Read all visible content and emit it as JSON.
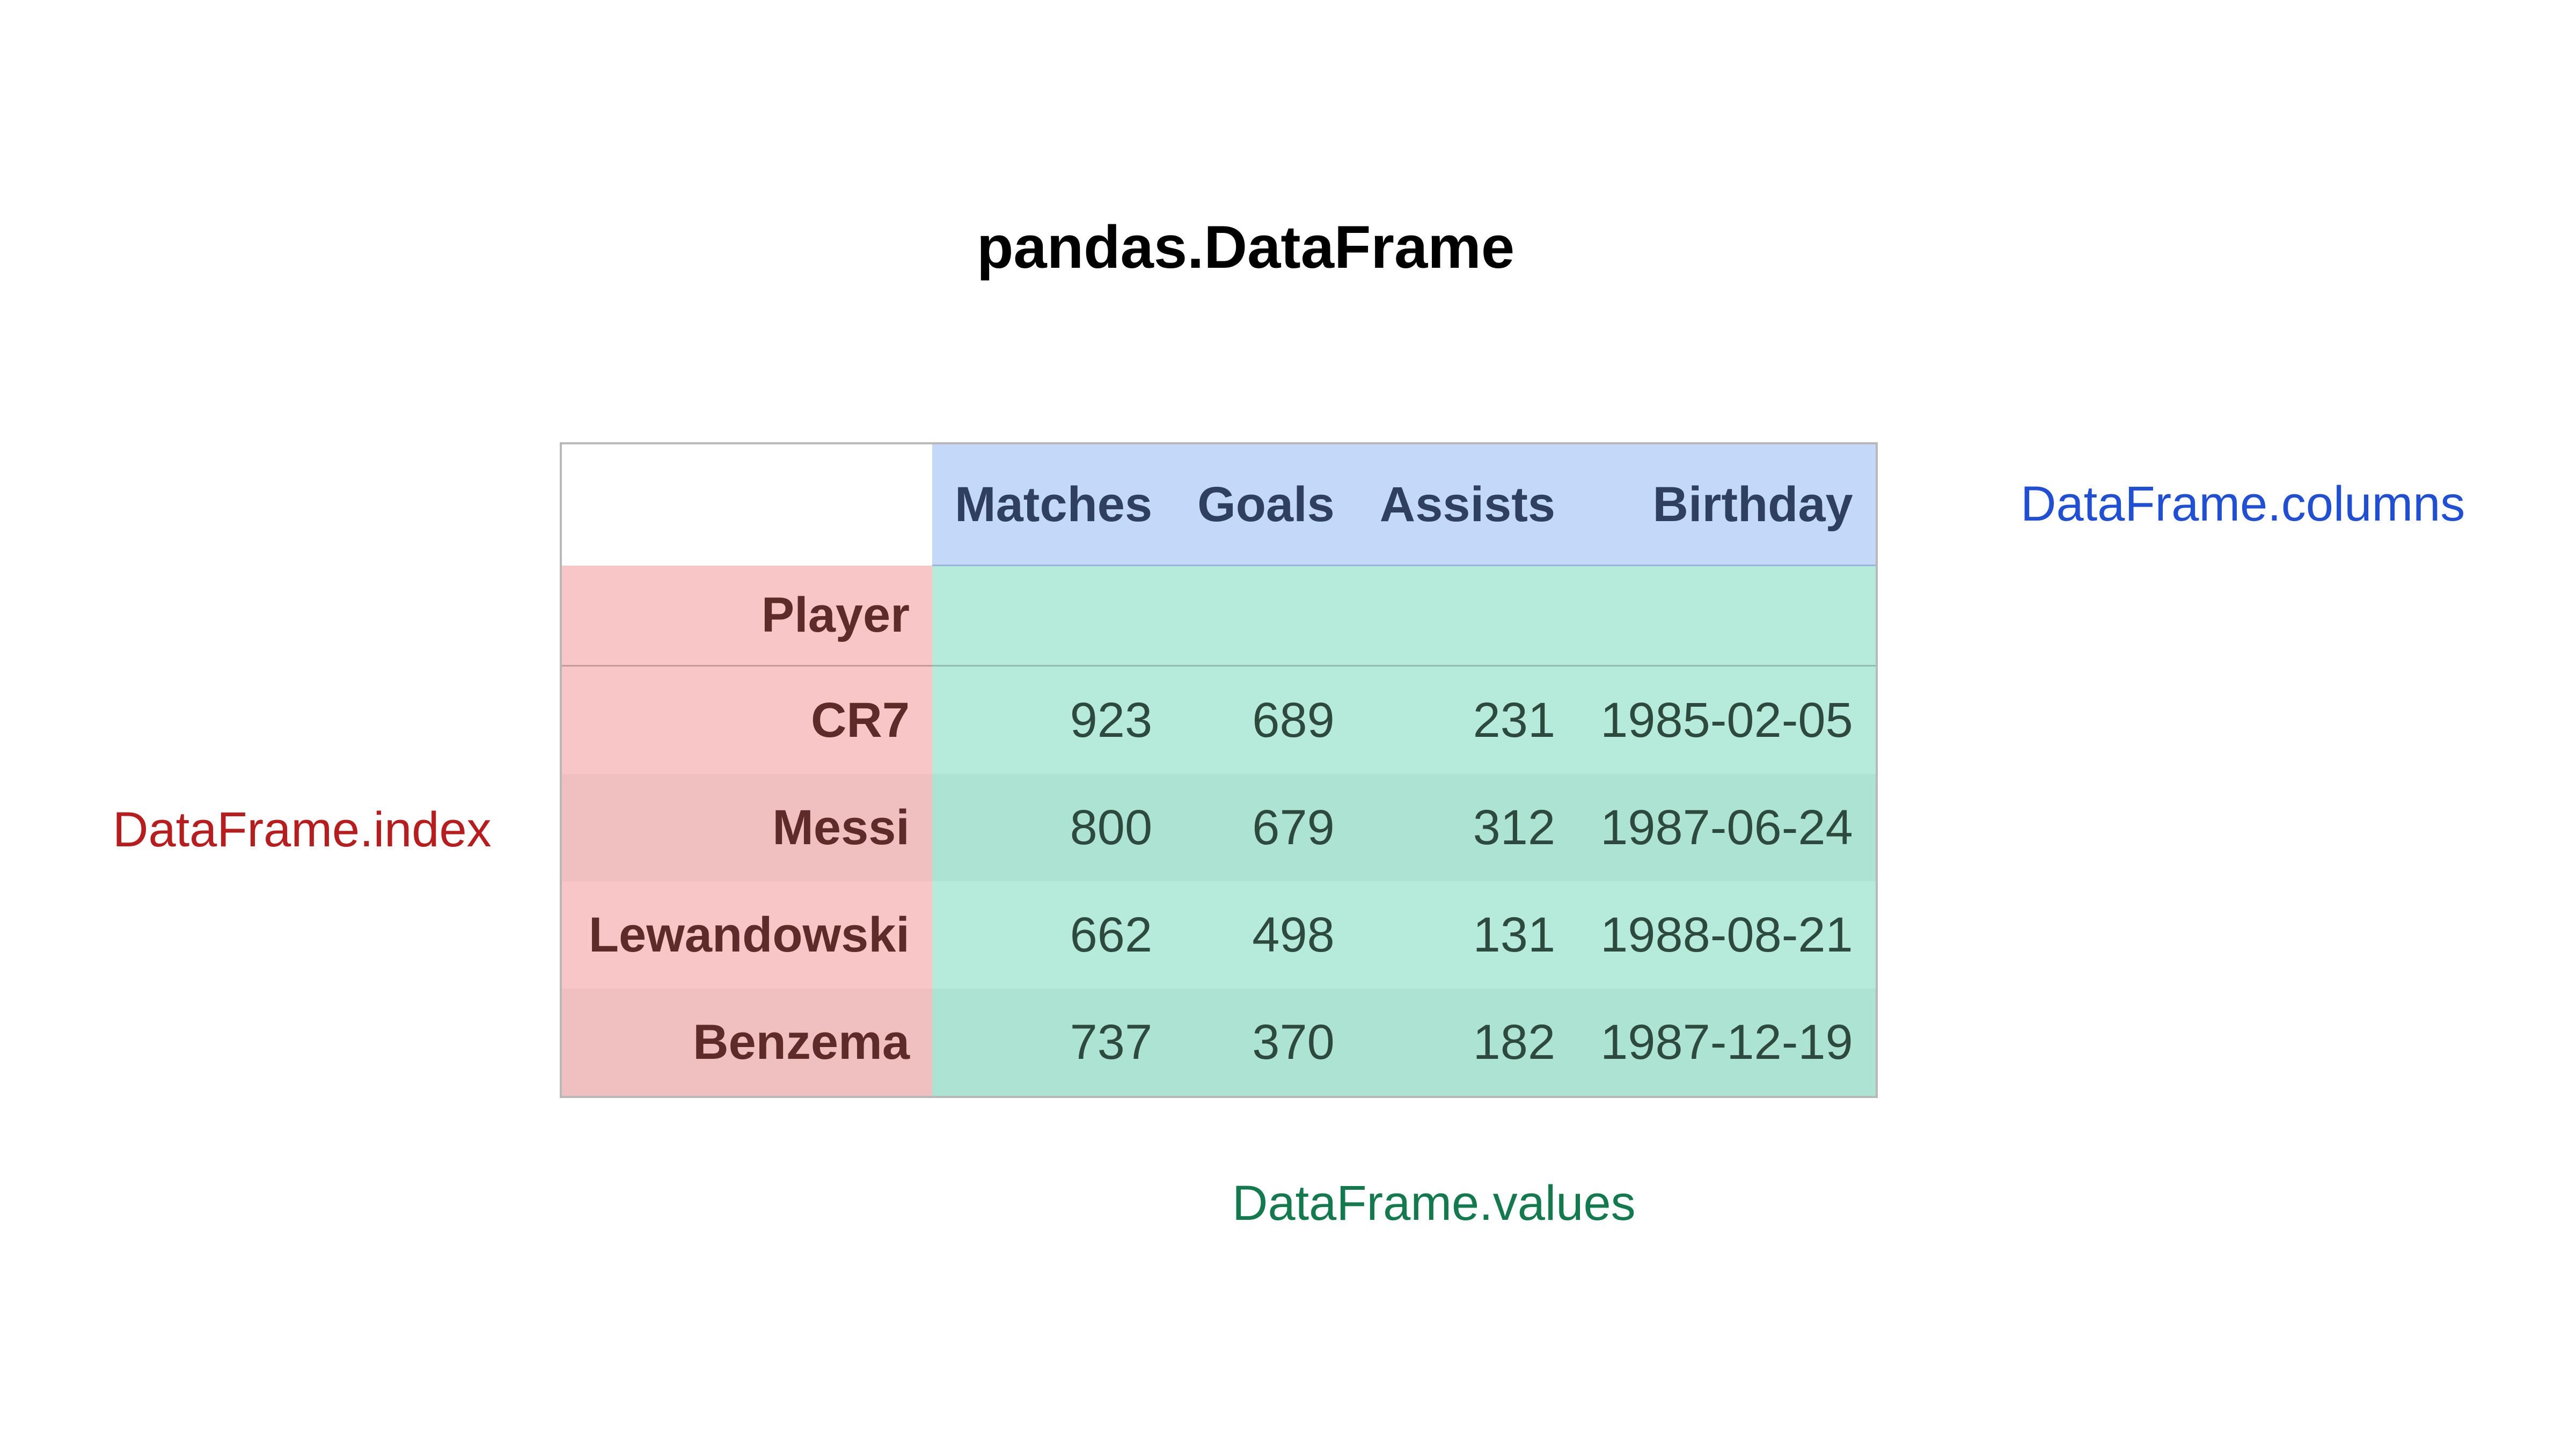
{
  "title": "pandas.DataFrame",
  "table": {
    "columns": [
      "Matches",
      "Goals",
      "Assists",
      "Birthday"
    ],
    "index_name": "Player",
    "rows": [
      {
        "index": "CR7",
        "values": [
          "923",
          "689",
          "231",
          "1985-02-05"
        ]
      },
      {
        "index": "Messi",
        "values": [
          "800",
          "679",
          "312",
          "1987-06-24"
        ]
      },
      {
        "index": "Lewandowski",
        "values": [
          "662",
          "498",
          "131",
          "1988-08-21"
        ]
      },
      {
        "index": "Benzema",
        "values": [
          "737",
          "370",
          "182",
          "1987-12-19"
        ]
      }
    ]
  },
  "labels": {
    "columns": "DataFrame.columns",
    "index": "DataFrame.index",
    "values": "DataFrame.values"
  },
  "colors": {
    "columns_region": "#c4d8fa",
    "index_region": "#f8c6c6",
    "values_region": "#b6eadb",
    "columns_label": "#1f4fd6",
    "index_label": "#b81c1c",
    "values_label": "#137a4e"
  }
}
